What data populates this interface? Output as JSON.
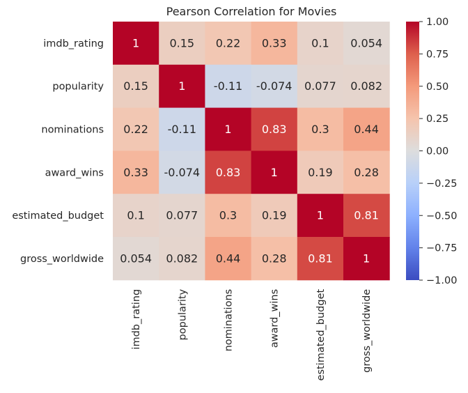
{
  "chart_data": {
    "type": "heatmap",
    "title": "Pearson Correlation for Movies",
    "xlabel": "",
    "ylabel": "",
    "row_labels": [
      "imdb_rating",
      "popularity",
      "nominations",
      "award_wins",
      "estimated_budget",
      "gross_worldwide"
    ],
    "col_labels": [
      "imdb_rating",
      "popularity",
      "nominations",
      "award_wins",
      "estimated_budget",
      "gross_worldwide"
    ],
    "values": [
      [
        1,
        0.15,
        0.22,
        0.33,
        0.1,
        0.054
      ],
      [
        0.15,
        1,
        -0.11,
        -0.074,
        0.077,
        0.082
      ],
      [
        0.22,
        -0.11,
        1,
        0.83,
        0.3,
        0.44
      ],
      [
        0.33,
        -0.074,
        0.83,
        1,
        0.19,
        0.28
      ],
      [
        0.1,
        0.077,
        0.3,
        0.19,
        1,
        0.81
      ],
      [
        0.054,
        0.082,
        0.44,
        0.28,
        0.81,
        1
      ]
    ],
    "annotations": [
      [
        "1",
        "0.15",
        "0.22",
        "0.33",
        "0.1",
        "0.054"
      ],
      [
        "0.15",
        "1",
        "-0.11",
        "-0.074",
        "0.077",
        "0.082"
      ],
      [
        "0.22",
        "-0.11",
        "1",
        "0.83",
        "0.3",
        "0.44"
      ],
      [
        "0.33",
        "-0.074",
        "0.83",
        "1",
        "0.19",
        "0.28"
      ],
      [
        "0.1",
        "0.077",
        "0.3",
        "0.19",
        "1",
        "0.81"
      ],
      [
        "0.054",
        "0.082",
        "0.44",
        "0.28",
        "0.81",
        "1"
      ]
    ],
    "colormap": "coolwarm",
    "colorbar": {
      "range": [
        -1,
        1
      ],
      "tick_values": [
        1.0,
        0.75,
        0.5,
        0.25,
        0.0,
        -0.25,
        -0.5,
        -0.75,
        -1.0
      ],
      "tick_labels": [
        "1.00",
        "0.75",
        "0.50",
        "0.25",
        "0.00",
        "−0.25",
        "−0.50",
        "−0.75",
        "−1.00"
      ]
    },
    "colors": {
      "low": "#3b4cc0",
      "mid": "#dddddd",
      "high": "#b40426",
      "text_dark": "#262626",
      "text_light": "#ffffff"
    },
    "grid": false,
    "legend": "right"
  }
}
